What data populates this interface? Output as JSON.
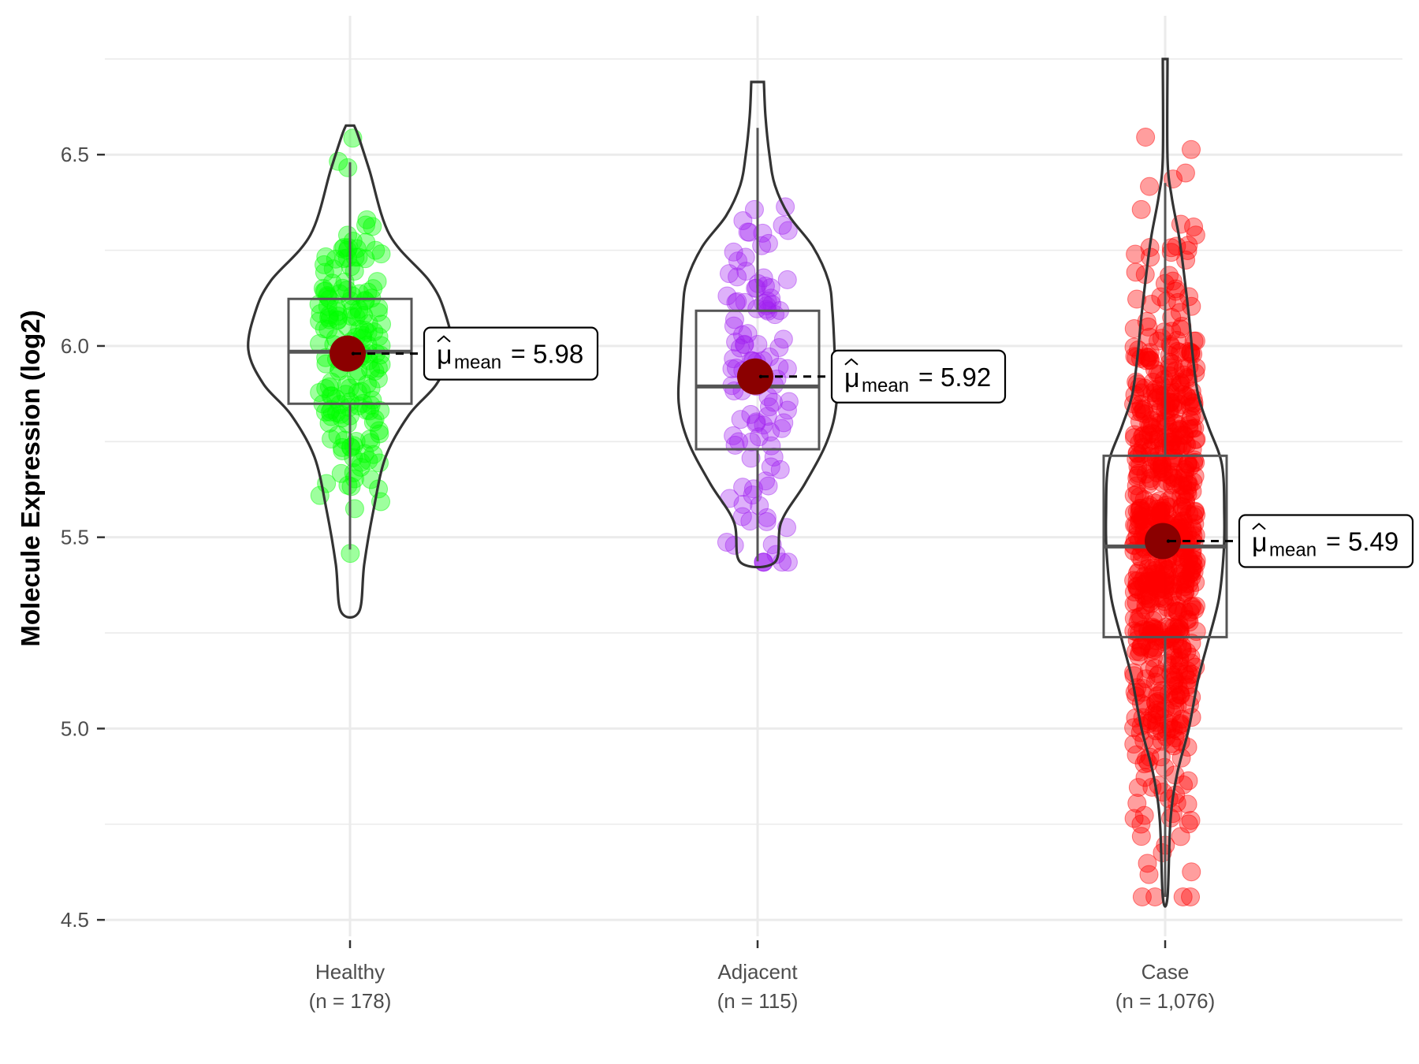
{
  "chart_data": {
    "type": "violin",
    "title": "",
    "xlabel": "",
    "ylabel": "Molecule Expression (log2)",
    "ylim": [
      4.457,
      6.863
    ],
    "yticks": [
      4.5,
      5.0,
      5.5,
      6.0,
      6.5
    ],
    "ytick_labels": [
      "4.5",
      "5.0",
      "5.5",
      "6.0",
      "6.5"
    ],
    "grid": true,
    "legend": "none",
    "categories": [
      "Healthy",
      "Adjacent",
      "Case"
    ],
    "groups": [
      {
        "name": "Healthy",
        "n_label": "(n = 178)",
        "n": 178,
        "color": "#00FF00",
        "mean": 5.98,
        "mean_label": "5.98",
        "median": 5.985,
        "q1": 5.849,
        "q3": 6.123,
        "whisker_low": 5.468,
        "whisker_high": 6.48,
        "min": 5.306,
        "max": 6.576,
        "violin_profile": [
          [
            6.576,
            0.04
          ],
          [
            6.55,
            0.08
          ],
          [
            6.46,
            0.19
          ],
          [
            6.29,
            0.39
          ],
          [
            6.17,
            0.78
          ],
          [
            6.09,
            0.93
          ],
          [
            5.99,
            1.0
          ],
          [
            5.9,
            0.85
          ],
          [
            5.82,
            0.58
          ],
          [
            5.71,
            0.35
          ],
          [
            5.57,
            0.23
          ],
          [
            5.43,
            0.14
          ],
          [
            5.306,
            0.09
          ]
        ]
      },
      {
        "name": "Adjacent",
        "n_label": "(n = 115)",
        "n": 115,
        "color": "#A020F0",
        "mean": 5.92,
        "mean_label": "5.92",
        "median": 5.894,
        "q1": 5.73,
        "q3": 6.092,
        "whisker_low": 5.437,
        "whisker_high": 6.57,
        "min": 5.435,
        "max": 6.69,
        "violin_profile": [
          [
            6.69,
            0.08
          ],
          [
            6.6,
            0.1
          ],
          [
            6.5,
            0.15
          ],
          [
            6.42,
            0.22
          ],
          [
            6.34,
            0.4
          ],
          [
            6.26,
            0.7
          ],
          [
            6.17,
            0.9
          ],
          [
            6.09,
            0.95
          ],
          [
            5.97,
            0.98
          ],
          [
            5.85,
            1.0
          ],
          [
            5.75,
            0.88
          ],
          [
            5.64,
            0.6
          ],
          [
            5.54,
            0.3
          ],
          [
            5.435,
            0.22
          ]
        ]
      },
      {
        "name": "Case",
        "n_label": "(n = 1,076)",
        "n": 1076,
        "color": "#FF0000",
        "mean": 5.49,
        "mean_label": "5.49",
        "median": 5.476,
        "q1": 5.239,
        "q3": 5.713,
        "whisker_low": 4.56,
        "whisker_high": 6.426,
        "min": 4.56,
        "max": 6.75,
        "violin_profile": [
          [
            6.75,
            0.04
          ],
          [
            6.49,
            0.04
          ],
          [
            6.39,
            0.11
          ],
          [
            6.29,
            0.23
          ],
          [
            6.2,
            0.31
          ],
          [
            6.08,
            0.4
          ],
          [
            5.97,
            0.47
          ],
          [
            5.87,
            0.56
          ],
          [
            5.79,
            0.73
          ],
          [
            5.69,
            0.96
          ],
          [
            5.56,
            1.0
          ],
          [
            5.46,
            0.99
          ],
          [
            5.34,
            0.91
          ],
          [
            5.23,
            0.73
          ],
          [
            5.13,
            0.56
          ],
          [
            5.0,
            0.4
          ],
          [
            4.88,
            0.2
          ],
          [
            4.76,
            0.09
          ],
          [
            4.56,
            0.04
          ]
        ]
      }
    ],
    "mean_symbol": "μ̂",
    "mean_subscript": "mean",
    "mean_equals": "="
  }
}
